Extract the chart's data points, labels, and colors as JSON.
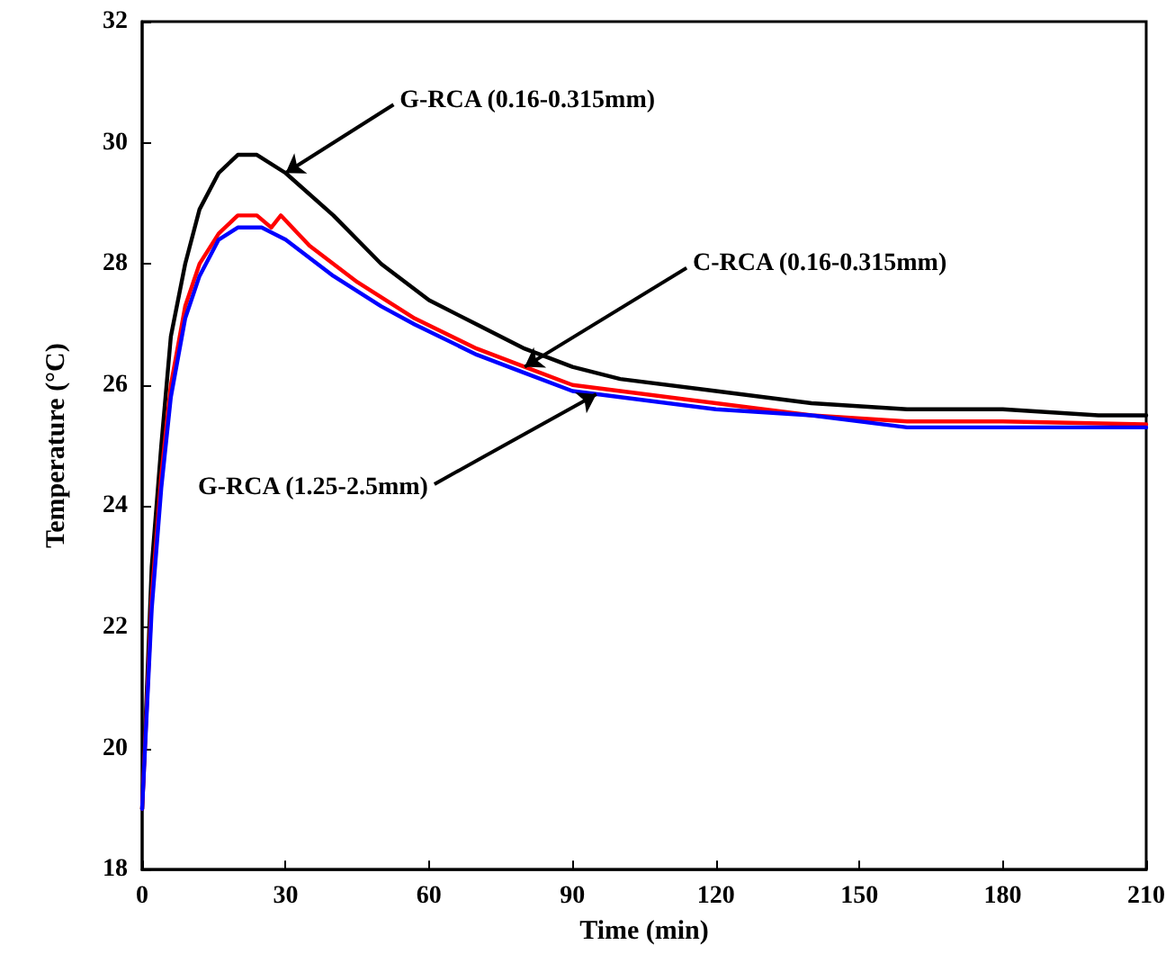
{
  "chart_data": {
    "type": "line",
    "xlabel": "Time (min)",
    "ylabel": "Temperature (°C)",
    "xlim": [
      0,
      210
    ],
    "xticks": [
      0,
      30,
      60,
      90,
      120,
      150,
      180,
      210
    ],
    "ylim": [
      18,
      32
    ],
    "yticks": [
      18,
      20,
      22,
      24,
      26,
      28,
      30,
      32
    ],
    "grid": false,
    "marker": "none",
    "line_style": "solid",
    "series": [
      {
        "color": "#000000",
        "x": [
          0,
          1,
          2,
          4,
          6,
          9,
          12,
          16,
          20,
          24,
          30,
          40,
          50,
          60,
          70,
          80,
          90,
          100,
          120,
          140,
          160,
          180,
          200,
          210
        ],
        "values": [
          19,
          21,
          23,
          25,
          26.8,
          28,
          28.9,
          29.5,
          29.8,
          29.8,
          29.5,
          28.8,
          28.0,
          27.4,
          27.0,
          26.6,
          26.3,
          26.1,
          25.9,
          25.7,
          25.6,
          25.6,
          25.5,
          25.5
        ]
      },
      {
        "color": "#ff0000",
        "x": [
          0,
          2,
          4,
          6,
          9,
          12,
          16,
          20,
          24,
          27,
          29,
          35,
          45,
          57,
          70,
          80,
          90,
          100,
          120,
          140,
          160,
          180,
          210
        ],
        "values": [
          19,
          22.5,
          24.5,
          26,
          27.3,
          28,
          28.5,
          28.8,
          28.8,
          28.6,
          28.8,
          28.3,
          27.7,
          27.1,
          26.6,
          26.3,
          26.0,
          25.9,
          25.7,
          25.5,
          25.4,
          25.4,
          25.35
        ]
      },
      {
        "color": "#0000ff",
        "x": [
          0,
          2,
          4,
          6,
          9,
          12,
          16,
          20,
          25,
          30,
          40,
          50,
          57,
          70,
          80,
          90,
          100,
          120,
          140,
          160,
          180,
          210
        ],
        "values": [
          19,
          22.3,
          24.3,
          25.8,
          27.1,
          27.8,
          28.4,
          28.6,
          28.6,
          28.4,
          27.8,
          27.3,
          27.0,
          26.5,
          26.2,
          25.9,
          25.8,
          25.6,
          25.5,
          25.3,
          25.3,
          25.3
        ]
      }
    ],
    "annotations": [
      {
        "text": "G-RCA (0.16-0.315mm)",
        "x": 30,
        "y": 29.5
      },
      {
        "text": "C-RCA (0.16-0.315mm)",
        "x": 80,
        "y": 26.3
      },
      {
        "text": "G-RCA (1.25-2.5mm)",
        "x": 95,
        "y": 25.85
      }
    ]
  }
}
